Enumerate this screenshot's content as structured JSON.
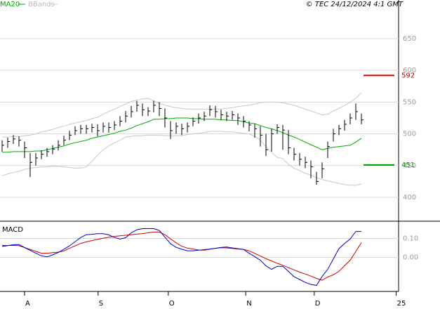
{
  "chart_data": {
    "type": "ohlc",
    "copyright": "© TEC 24/12/2024 4:1 GMT",
    "xlim": [
      -0.375,
      70.625
    ],
    "xticks": [
      {
        "value": 4,
        "label": "A"
      },
      {
        "value": 17.1,
        "label": "S"
      },
      {
        "value": 29.6,
        "label": "O"
      },
      {
        "value": 43.4,
        "label": "N"
      },
      {
        "value": 55.6,
        "label": "D"
      },
      {
        "value": 70.2,
        "label": "25"
      }
    ],
    "ylim": [
      362.4,
      710.8
    ],
    "yticks": [
      400,
      450,
      500,
      550,
      600,
      650
    ],
    "grid": true,
    "price": {
      "color": "#000000",
      "high": [
        490,
        494,
        498,
        496,
        488,
        470,
        470,
        474,
        478,
        482,
        490,
        497,
        505,
        512,
        514,
        514,
        516,
        515,
        518,
        518,
        520,
        528,
        536,
        544,
        552,
        548,
        542,
        552,
        550,
        540,
        520,
        518,
        516,
        518,
        526,
        532,
        535,
        545,
        544,
        538,
        535,
        536,
        532,
        528,
        520,
        516,
        512,
        500,
        508,
        515,
        514,
        506,
        478,
        470,
        464,
        458,
        440,
        455,
        488,
        508,
        514,
        522,
        532,
        548,
        532
      ],
      "low": [
        472,
        478,
        484,
        480,
        462,
        432,
        450,
        460,
        464,
        468,
        474,
        482,
        490,
        498,
        500,
        500,
        502,
        496,
        502,
        502,
        506,
        512,
        518,
        526,
        535,
        528,
        528,
        534,
        528,
        510,
        492,
        500,
        498,
        502,
        512,
        516,
        520,
        528,
        526,
        522,
        520,
        522,
        514,
        510,
        504,
        494,
        480,
        465,
        472,
        500,
        475,
        468,
        458,
        450,
        446,
        430,
        420,
        430,
        462,
        488,
        498,
        505,
        515,
        522,
        515
      ],
      "close": [
        482,
        488,
        492,
        490,
        478,
        455,
        462,
        468,
        472,
        476,
        482,
        490,
        498,
        505,
        508,
        508,
        510,
        505,
        512,
        510,
        514,
        520,
        528,
        535,
        545,
        538,
        536,
        545,
        540,
        525,
        505,
        512,
        508,
        512,
        520,
        525,
        528,
        538,
        535,
        530,
        528,
        530,
        525,
        520,
        514,
        508,
        498,
        475,
        500,
        510,
        506,
        478,
        468,
        460,
        455,
        448,
        425,
        445,
        480,
        500,
        508,
        515,
        525,
        535,
        522
      ]
    },
    "ma": {
      "name": "MA20",
      "color": "#00aa00",
      "values": [
        471,
        471,
        472,
        472,
        472,
        472,
        473,
        473,
        475,
        477,
        479,
        481,
        484,
        486,
        488,
        490,
        493,
        495,
        497,
        499,
        501,
        504,
        506,
        509,
        513,
        516,
        519,
        523,
        523,
        524,
        524,
        525,
        525,
        525,
        524,
        524,
        523,
        523,
        523,
        522,
        522,
        521,
        521,
        519,
        517,
        516,
        513,
        510,
        508,
        505,
        502,
        498,
        495,
        491,
        487,
        483,
        479,
        475,
        477,
        479,
        480,
        481,
        482,
        487,
        493
      ]
    },
    "bbands": {
      "name": "BBands",
      "color": "#c8c8c8",
      "upper": [
        495,
        495,
        496,
        496,
        497,
        498,
        500,
        503,
        505,
        507,
        510,
        512,
        515,
        517,
        519,
        521,
        524,
        526,
        531,
        535,
        539,
        543,
        547,
        551,
        553,
        555,
        556,
        552,
        548,
        545,
        543,
        541,
        540,
        539,
        539,
        539,
        539,
        539,
        539,
        539,
        540,
        541,
        543,
        544,
        545,
        547,
        549,
        550,
        550,
        550,
        549,
        547,
        545,
        542,
        539,
        536,
        533,
        530,
        531,
        536,
        540,
        545,
        550,
        556,
        565
      ],
      "lower": [
        434,
        437,
        439,
        441,
        444,
        446,
        447,
        448,
        448,
        449,
        449,
        448,
        447,
        446,
        446,
        448,
        457,
        466,
        475,
        481,
        486,
        490,
        495,
        496,
        497,
        497,
        498,
        498,
        498,
        497,
        497,
        497,
        497,
        499,
        500,
        501,
        502,
        504,
        504,
        504,
        503,
        503,
        502,
        501,
        500,
        496,
        490,
        480,
        471,
        463,
        461,
        452,
        446,
        442,
        438,
        435,
        431,
        428,
        426,
        424,
        422,
        420,
        419,
        419,
        421
      ]
    },
    "levels": [
      {
        "value": 592,
        "color": "#cc0000"
      },
      {
        "value": 451,
        "color": "#009900"
      }
    ],
    "macd": {
      "title": "MACD",
      "ylim": [
        -0.18,
        0.18
      ],
      "yticks": [
        {
          "value": 0.1,
          "label": "0.10"
        },
        {
          "value": 0,
          "label": "0.00"
        }
      ],
      "macd": {
        "color": "#0000cc",
        "values": [
          0.058,
          0.062,
          0.067,
          0.068,
          0.052,
          0.037,
          0.022,
          0.008,
          0.003,
          0.013,
          0.026,
          0.043,
          0.061,
          0.083,
          0.105,
          0.12,
          0.122,
          0.125,
          0.125,
          0.119,
          0.105,
          0.097,
          0.104,
          0.13,
          0.146,
          0.152,
          0.152,
          0.152,
          0.142,
          0.107,
          0.072,
          0.053,
          0.043,
          0.035,
          0.035,
          0.038,
          0.041,
          0.044,
          0.048,
          0.053,
          0.055,
          0.05,
          0.046,
          0.042,
          0.022,
          0.004,
          -0.015,
          -0.045,
          -0.063,
          -0.047,
          -0.047,
          -0.074,
          -0.102,
          -0.117,
          -0.132,
          -0.143,
          -0.148,
          -0.101,
          -0.063,
          -0.008,
          0.046,
          0.074,
          0.097,
          0.137,
          0.137
        ]
      },
      "signal": {
        "color": "#cc0000",
        "values": [
          0.063,
          0.063,
          0.063,
          0.062,
          0.052,
          0.042,
          0.032,
          0.022,
          0.022,
          0.025,
          0.028,
          0.034,
          0.048,
          0.061,
          0.074,
          0.082,
          0.089,
          0.095,
          0.101,
          0.107,
          0.111,
          0.114,
          0.117,
          0.12,
          0.123,
          0.126,
          0.13,
          0.134,
          0.134,
          0.12,
          0.098,
          0.077,
          0.059,
          0.049,
          0.044,
          0.039,
          0.038,
          0.043,
          0.048,
          0.051,
          0.05,
          0.047,
          0.044,
          0.042,
          0.035,
          0.021,
          0.007,
          -0.007,
          -0.019,
          -0.031,
          -0.042,
          -0.054,
          -0.066,
          -0.078,
          -0.088,
          -0.099,
          -0.111,
          -0.121,
          -0.104,
          -0.092,
          -0.074,
          -0.044,
          -0.015,
          0.031,
          0.078
        ]
      }
    }
  }
}
